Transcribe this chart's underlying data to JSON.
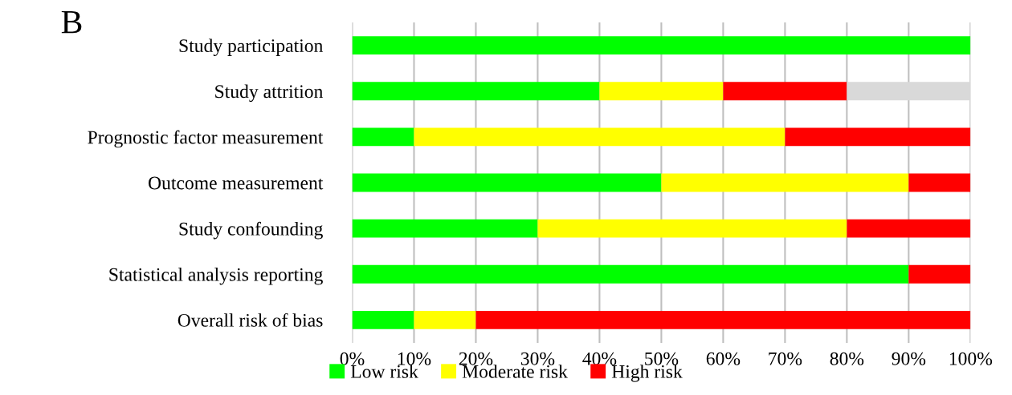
{
  "chart_data": {
    "type": "bar",
    "orientation": "horizontal",
    "stacked": true,
    "categories": [
      "Study participation",
      "Study attrition",
      "Prognostic factor measurement",
      "Outcome measurement",
      "Study confounding",
      "Statistical analysis reporting",
      "Overall risk of bias"
    ],
    "series": [
      {
        "name": "Low risk",
        "color": "#00ff00",
        "values": [
          100,
          40,
          10,
          50,
          30,
          90,
          10
        ]
      },
      {
        "name": "Moderate risk",
        "color": "#ffff00",
        "values": [
          0,
          20,
          60,
          40,
          50,
          0,
          10
        ]
      },
      {
        "name": "High risk",
        "color": "#ff0000",
        "values": [
          0,
          20,
          30,
          10,
          20,
          10,
          80
        ]
      },
      {
        "color": "#d9d9d9",
        "values": [
          0,
          20,
          0,
          0,
          0,
          0,
          0
        ]
      }
    ],
    "xlim": [
      0,
      100
    ],
    "xticks": [
      {
        "value": 0,
        "label": "0%"
      },
      {
        "value": 10,
        "label": "10%"
      },
      {
        "value": 20,
        "label": "20%"
      },
      {
        "value": 30,
        "label": "30%"
      },
      {
        "value": 40,
        "label": "40%"
      },
      {
        "value": 50,
        "label": "50%"
      },
      {
        "value": 60,
        "label": "60%"
      },
      {
        "value": 70,
        "label": "70%"
      },
      {
        "value": 80,
        "label": "80%"
      },
      {
        "value": 90,
        "label": "90%"
      },
      {
        "value": 100,
        "label": "100%"
      }
    ],
    "grid": "x",
    "legend": "bottom",
    "annotations": [
      "B"
    ]
  }
}
